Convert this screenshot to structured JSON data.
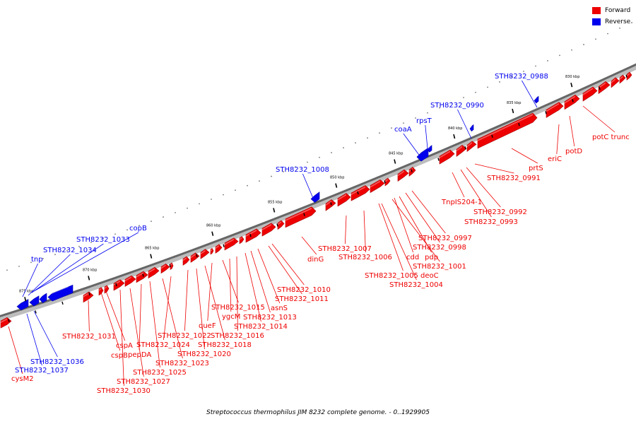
{
  "legend": [
    {
      "label": "Forward",
      "color": "#ee0000"
    },
    {
      "label": "Reverse",
      "color": "#0000ee"
    }
  ],
  "caption": "Streptococcus thermophilus JIM 8232 complete genome. - 0..1929905",
  "colors": {
    "forward": "#ee0000",
    "reverse": "#0000ee",
    "axis": "#555555"
  },
  "ticks": [
    "875 kbp",
    "870 kbp",
    "865 kbp",
    "860 kbp",
    "855 kbp",
    "850 kbp",
    "845 kbp",
    "840 kbp",
    "835 kbp",
    "830 kbp"
  ],
  "genes": [
    {
      "label": "STH8232_0988",
      "strand": "reverse"
    },
    {
      "label": "STH8232_0990",
      "strand": "reverse"
    },
    {
      "label": "rpsT",
      "strand": "reverse"
    },
    {
      "label": "coaA",
      "strand": "reverse"
    },
    {
      "label": "STH8232_1008",
      "strand": "reverse"
    },
    {
      "label": "copB",
      "strand": "reverse"
    },
    {
      "label": "STH8232_1033",
      "strand": "reverse"
    },
    {
      "label": "STH8232_1034",
      "strand": "reverse"
    },
    {
      "label": "tnp",
      "strand": "reverse"
    },
    {
      "label": "STH8232_1036",
      "strand": "reverse"
    },
    {
      "label": "STH8232_1037",
      "strand": "reverse"
    },
    {
      "label": "potC trunc",
      "strand": "forward"
    },
    {
      "label": "potD",
      "strand": "forward"
    },
    {
      "label": "eriC",
      "strand": "forward"
    },
    {
      "label": "prtS",
      "strand": "forward"
    },
    {
      "label": "STH8232_0991",
      "strand": "forward"
    },
    {
      "label": "TnpIS204-1",
      "strand": "forward"
    },
    {
      "label": "STH8232_0992",
      "strand": "forward"
    },
    {
      "label": "STH8232_0993",
      "strand": "forward"
    },
    {
      "label": "STH8232_0997",
      "strand": "forward"
    },
    {
      "label": "STH8232_0998",
      "strand": "forward"
    },
    {
      "label": "pdp",
      "strand": "forward"
    },
    {
      "label": "cdd",
      "strand": "forward"
    },
    {
      "label": "STH8232_1001",
      "strand": "forward"
    },
    {
      "label": "STH8232_1005 deoC",
      "strand": "forward"
    },
    {
      "label": "STH8232_1004",
      "strand": "forward"
    },
    {
      "label": "STH8232_1006",
      "strand": "forward"
    },
    {
      "label": "STH8232_1007",
      "strand": "forward"
    },
    {
      "label": "dinG",
      "strand": "forward"
    },
    {
      "label": "STH8232_1010",
      "strand": "forward"
    },
    {
      "label": "STH8232_1011",
      "strand": "forward"
    },
    {
      "label": "STH8232_1013",
      "strand": "forward"
    },
    {
      "label": "asnS",
      "strand": "forward"
    },
    {
      "label": "STH8232_1014",
      "strand": "forward"
    },
    {
      "label": "STH8232_1015",
      "strand": "forward"
    },
    {
      "label": "ygcM",
      "strand": "forward"
    },
    {
      "label": "STH8232_1016",
      "strand": "forward"
    },
    {
      "label": "queF",
      "strand": "forward"
    },
    {
      "label": "STH8232_1018",
      "strand": "forward"
    },
    {
      "label": "STH8232_1020",
      "strand": "forward"
    },
    {
      "label": "STH8232_1022",
      "strand": "forward"
    },
    {
      "label": "STH8232_1024",
      "strand": "forward"
    },
    {
      "label": "STH8232_1023",
      "strand": "forward"
    },
    {
      "label": "STH8232_1025",
      "strand": "forward"
    },
    {
      "label": "pepDA",
      "strand": "forward"
    },
    {
      "label": "cspA",
      "strand": "forward"
    },
    {
      "label": "cspB",
      "strand": "forward"
    },
    {
      "label": "STH8232_1027",
      "strand": "forward"
    },
    {
      "label": "STH8232_1031",
      "strand": "forward"
    },
    {
      "label": "STH8232_1030",
      "strand": "forward"
    },
    {
      "label": "cysM2",
      "strand": "forward"
    }
  ]
}
